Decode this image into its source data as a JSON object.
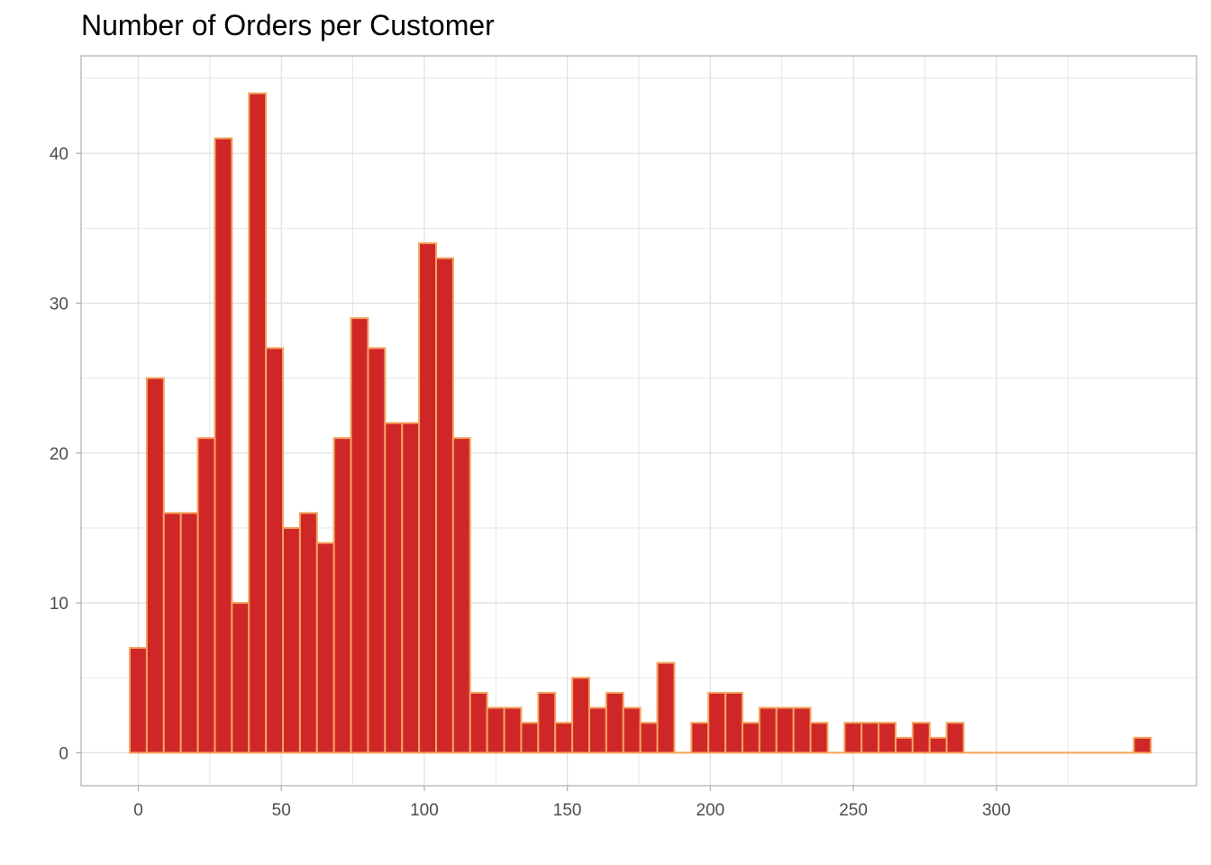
{
  "chart_data": {
    "type": "bar",
    "title": "Number of Orders per Customer",
    "xlabel": "",
    "ylabel": "",
    "bin_width": 5.95,
    "bin_start": -2.98,
    "values": [
      7,
      25,
      16,
      16,
      21,
      41,
      10,
      44,
      27,
      15,
      16,
      14,
      21,
      29,
      27,
      22,
      22,
      34,
      33,
      21,
      4,
      3,
      3,
      2,
      4,
      2,
      5,
      3,
      4,
      3,
      2,
      6,
      0,
      2,
      4,
      4,
      2,
      3,
      3,
      3,
      2,
      0,
      2,
      2,
      2,
      1,
      2,
      1,
      2,
      0,
      0,
      0,
      0,
      0,
      0,
      0,
      0,
      0,
      0,
      1
    ],
    "xlim": [
      -20,
      370
    ],
    "ylim": [
      -2.2,
      46.5
    ],
    "x_ticks": [
      0,
      50,
      100,
      150,
      200,
      250,
      300
    ],
    "y_ticks": [
      0,
      10,
      20,
      30,
      40
    ],
    "grid": true,
    "legend": "none",
    "colors": {
      "fill": "#cf2727",
      "outline": "#f4a460",
      "grid": "#e0e0e0",
      "panel_border": "#b3b3b3"
    }
  }
}
